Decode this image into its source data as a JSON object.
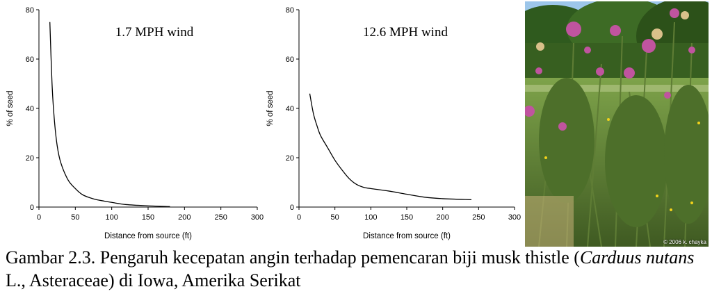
{
  "chart_data": [
    {
      "type": "line",
      "title": "1.7 MPH wind",
      "xlabel": "Distance from source (ft)",
      "ylabel": "% of seed",
      "xlim": [
        0,
        300
      ],
      "ylim": [
        0,
        80
      ],
      "xticks": [
        "0",
        "50",
        "100",
        "150",
        "200",
        "250",
        "300"
      ],
      "yticks": [
        "0",
        "20",
        "40",
        "60",
        "80"
      ],
      "grid": false,
      "series": [
        {
          "x": [
            15,
            18,
            21,
            25,
            30,
            40,
            50,
            60,
            75,
            90,
            100,
            120,
            150,
            180
          ],
          "y": [
            75,
            50,
            36,
            25,
            18,
            11,
            7.5,
            5,
            3.3,
            2.4,
            1.9,
            1,
            0.5,
            0.2
          ]
        }
      ]
    },
    {
      "type": "line",
      "title": "12.6 MPH wind",
      "xlabel": "Distance from source (ft)",
      "ylabel": "% of seed",
      "xlim": [
        0,
        300
      ],
      "ylim": [
        0,
        80
      ],
      "xticks": [
        "0",
        "50",
        "100",
        "150",
        "200",
        "250",
        "300"
      ],
      "yticks": [
        "0",
        "20",
        "40",
        "60",
        "80"
      ],
      "grid": false,
      "series": [
        {
          "x": [
            15,
            20,
            25,
            30,
            40,
            50,
            60,
            70,
            80,
            90,
            100,
            125,
            150,
            175,
            200,
            240
          ],
          "y": [
            46,
            38,
            33,
            29,
            24,
            19,
            15,
            11.5,
            9.2,
            8,
            7.5,
            6.5,
            5.2,
            4,
            3.4,
            3
          ]
        }
      ]
    }
  ],
  "photo": {
    "credit": "© 2006 k. chayka"
  },
  "caption": {
    "part1": "Gambar 2.3. Pengaruh kecepatan angin terhadap pemencaran biji musk thistle (",
    "italic1": "Carduus nutans",
    "part2": " L., Asteraceae) di Iowa, Amerika Serikat"
  }
}
